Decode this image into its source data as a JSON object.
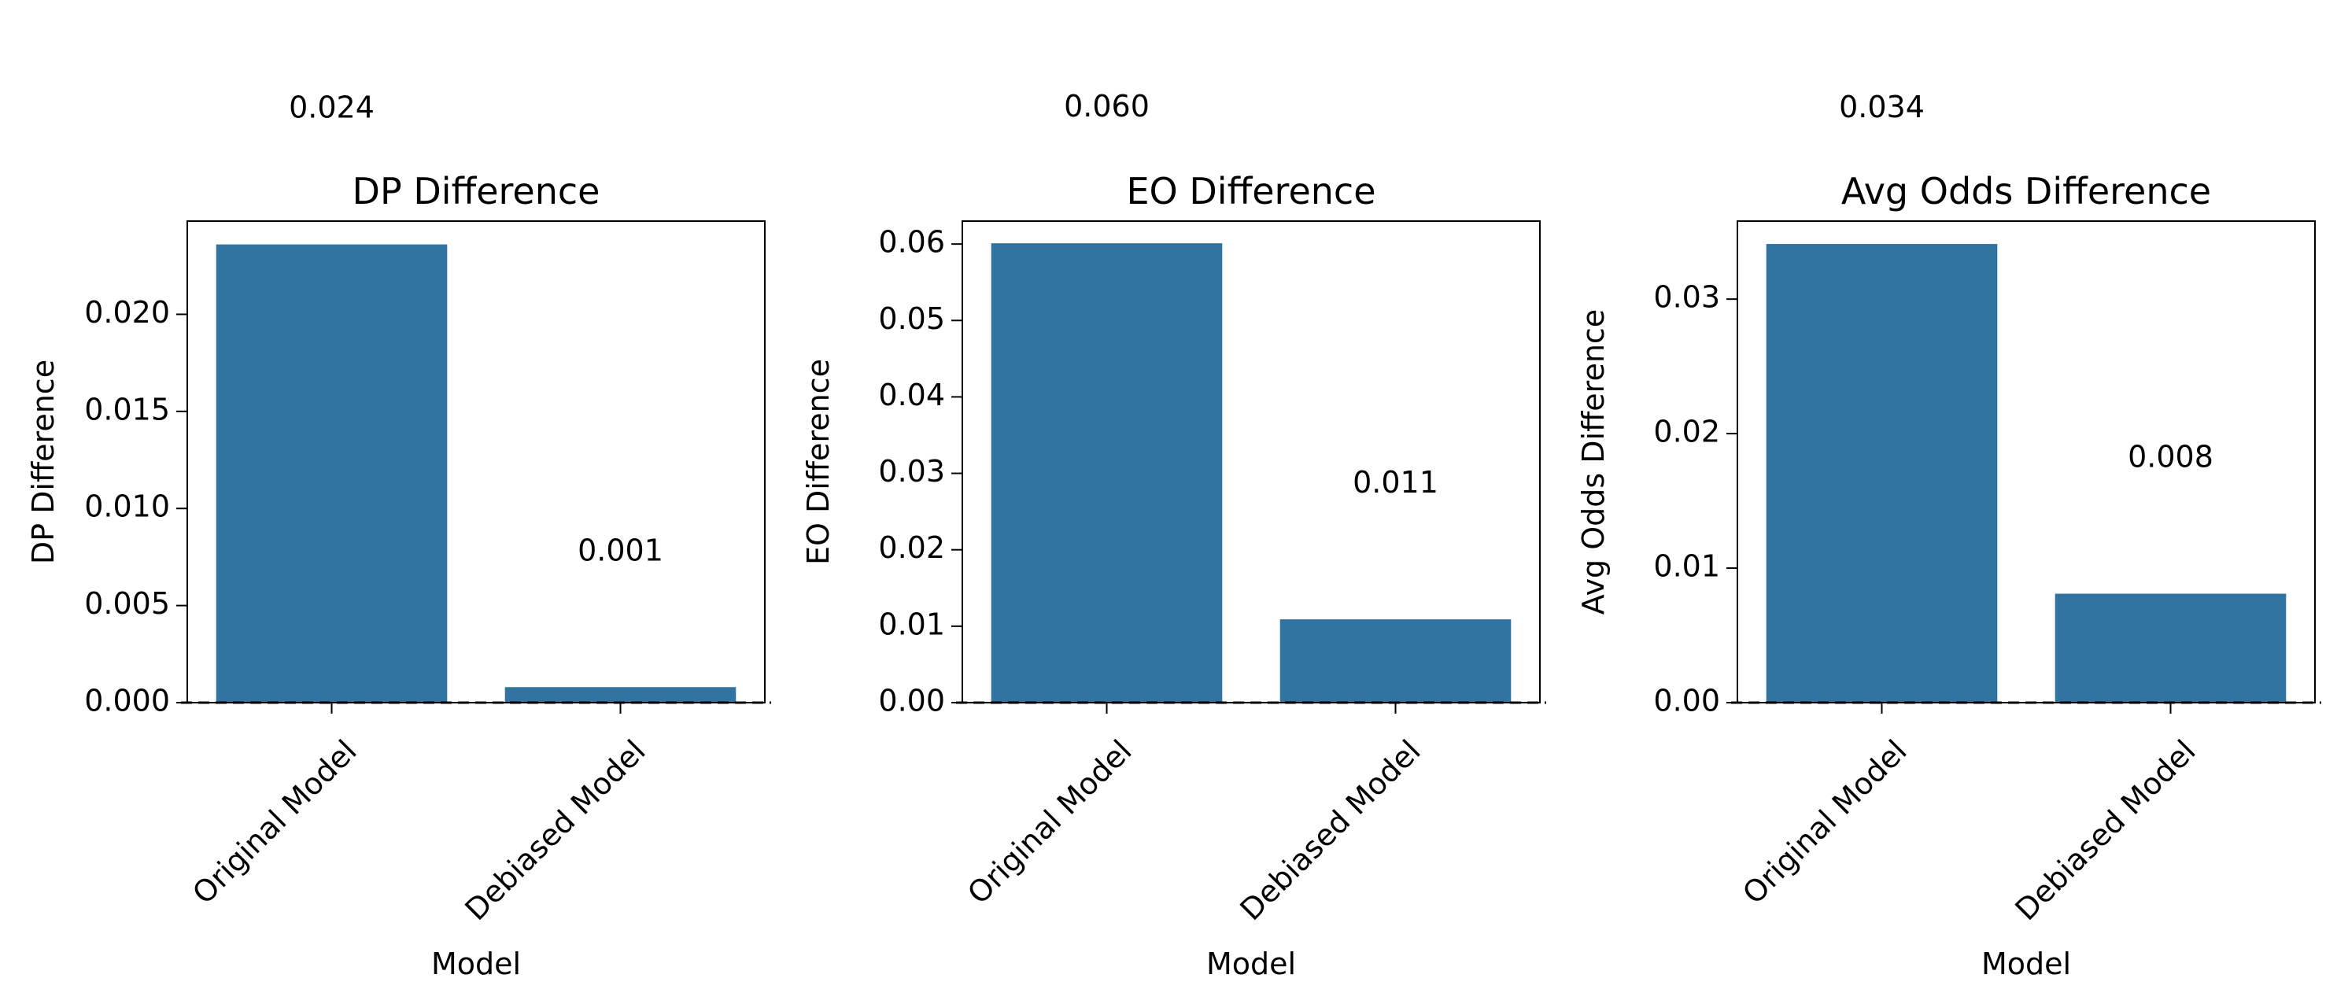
{
  "chart_data": [
    {
      "type": "bar",
      "title": "DP Difference",
      "xlabel": "Model",
      "ylabel": "DP Difference",
      "categories": [
        "Original Model",
        "Debiased Model"
      ],
      "values": [
        0.0236,
        0.0008
      ],
      "value_labels": [
        "0.024",
        "0.001"
      ],
      "ylim": [
        0,
        0.0248
      ],
      "yticks": [
        0.0,
        0.005,
        0.01,
        0.015,
        0.02
      ],
      "ytick_labels": [
        "0.000",
        "0.005",
        "0.010",
        "0.015",
        "0.020"
      ],
      "bar_color": "#3274a1",
      "reference_line": 0,
      "grid": false
    },
    {
      "type": "bar",
      "title": "EO Difference",
      "xlabel": "Model",
      "ylabel": "EO Difference",
      "categories": [
        "Original Model",
        "Debiased Model"
      ],
      "values": [
        0.0601,
        0.0109
      ],
      "value_labels": [
        "0.060",
        "0.011"
      ],
      "ylim": [
        0,
        0.063
      ],
      "yticks": [
        0.0,
        0.01,
        0.02,
        0.03,
        0.04,
        0.05,
        0.06
      ],
      "ytick_labels": [
        "0.00",
        "0.01",
        "0.02",
        "0.03",
        "0.04",
        "0.05",
        "0.06"
      ],
      "bar_color": "#3274a1",
      "reference_line": 0,
      "grid": false
    },
    {
      "type": "bar",
      "title": "Avg Odds Difference",
      "xlabel": "Model",
      "ylabel": "Avg Odds Difference",
      "categories": [
        "Original Model",
        "Debiased Model"
      ],
      "values": [
        0.0341,
        0.0081
      ],
      "value_labels": [
        "0.034",
        "0.008"
      ],
      "ylim": [
        0,
        0.0358
      ],
      "yticks": [
        0.0,
        0.01,
        0.02,
        0.03
      ],
      "ytick_labels": [
        "0.00",
        "0.01",
        "0.02",
        "0.03"
      ],
      "bar_color": "#3274a1",
      "reference_line": 0,
      "grid": false
    }
  ]
}
